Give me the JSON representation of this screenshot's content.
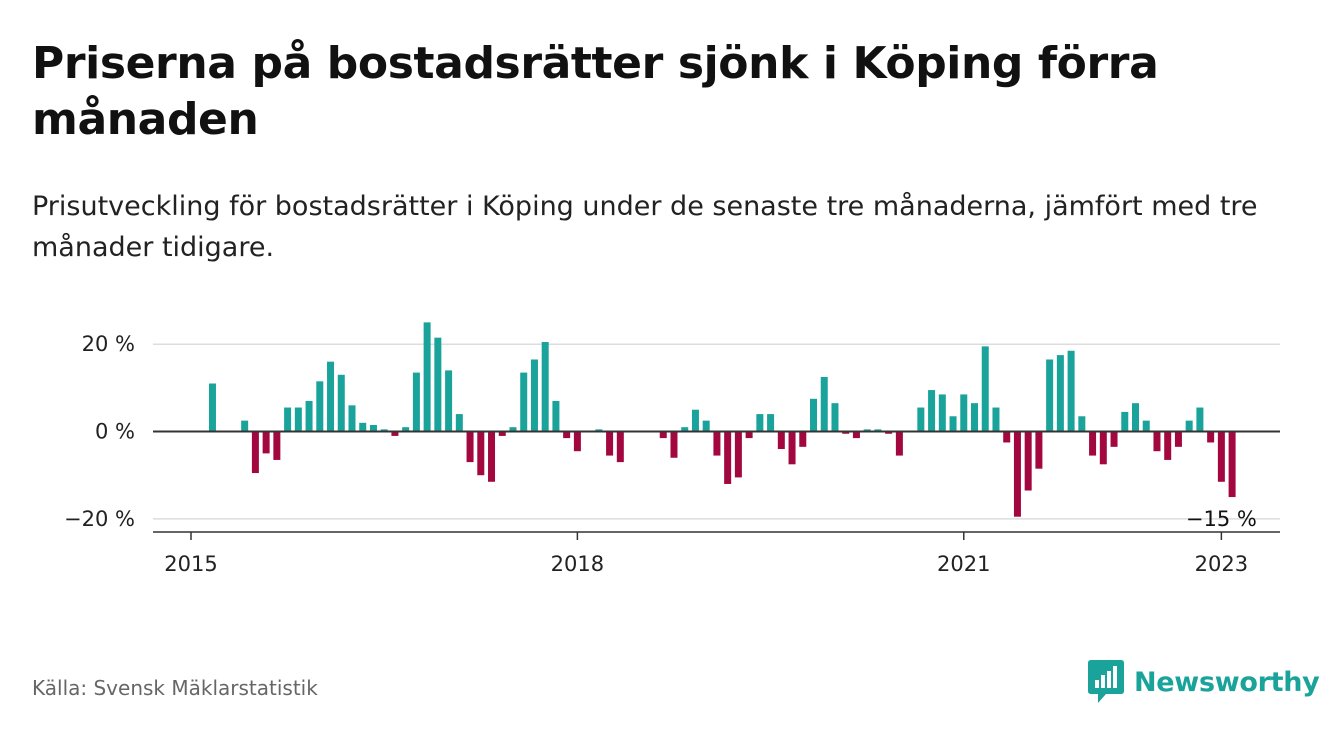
{
  "title": "Priserna på bostadsrätter sjönk i Köping förra månaden",
  "subtitle": "Prisutveckling för bostadsrätter i Köping under de senaste tre månaderna, jämfört med tre månader tidigare.",
  "source": "Källa: Svensk Mäklarstatistik",
  "brand": {
    "name": "Newsworthy",
    "icon": "newsworthy-logo-icon"
  },
  "colors": {
    "positive": "#1aa39a",
    "negative": "#a3073f",
    "grid": "#dddddd",
    "axis": "#333333"
  },
  "chart_data": {
    "type": "bar",
    "x_start": "2015-01",
    "x_frequency": "monthly",
    "x_ticks": [
      {
        "value": "2015-01",
        "label": "2015"
      },
      {
        "value": "2018-01",
        "label": "2018"
      },
      {
        "value": "2021-01",
        "label": "2021"
      },
      {
        "value": "2023-01",
        "label": "2023"
      }
    ],
    "y_ticks": [
      {
        "value": 20,
        "label": "20 %"
      },
      {
        "value": 0,
        "label": "0 %"
      },
      {
        "value": -20,
        "label": "−20 %"
      }
    ],
    "ylim": [
      -23,
      26
    ],
    "grid": true,
    "annotation": {
      "x": "2023-01",
      "value": -15,
      "text": "−15 %"
    },
    "values": [
      null,
      null,
      11,
      null,
      null,
      2.5,
      -9.5,
      -5,
      -6.5,
      5.5,
      5.5,
      7,
      11.5,
      16,
      13,
      6,
      2,
      1.5,
      0.5,
      -1,
      1,
      13.5,
      25,
      21.5,
      14,
      4,
      -7,
      -10,
      -11.5,
      -1,
      1,
      13.5,
      16.5,
      20.5,
      7,
      -1.5,
      -4.5,
      null,
      0.5,
      -5.5,
      -7,
      null,
      null,
      null,
      -1.5,
      -6,
      1,
      5,
      2.5,
      -5.5,
      -12,
      -10.5,
      -1.5,
      4,
      4,
      -4,
      -7.5,
      -3.5,
      7.5,
      12.5,
      6.5,
      -0.5,
      -1.5,
      0.5,
      0.5,
      -0.5,
      -5.5,
      null,
      5.5,
      9.5,
      8.5,
      3.5,
      8.5,
      6.5,
      19.5,
      5.5,
      -2.5,
      -19.5,
      -13.5,
      -8.5,
      16.5,
      17.5,
      18.5,
      3.5,
      -5.5,
      -7.5,
      -3.5,
      4.5,
      6.5,
      2.5,
      -4.5,
      -6.5,
      -3.5,
      2.5,
      5.5,
      -2.5,
      -11.5,
      -15
    ]
  }
}
